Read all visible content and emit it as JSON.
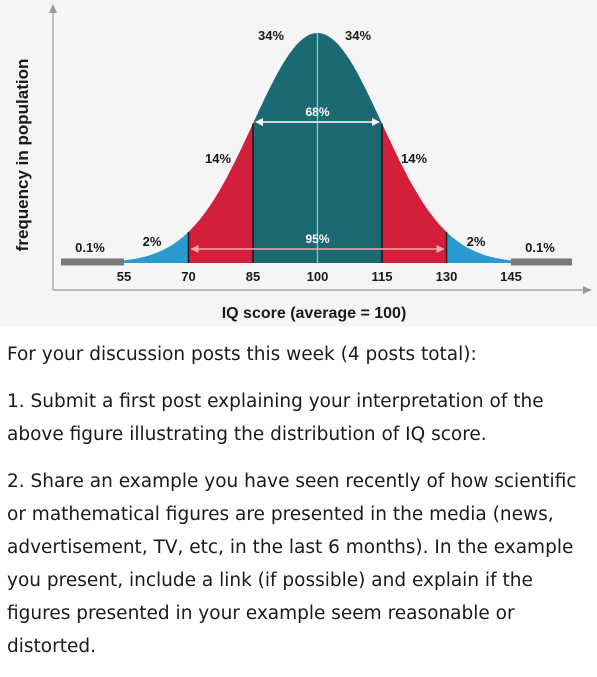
{
  "chart_data": {
    "type": "area",
    "ylabel": "frequency in population",
    "xlabel": "IQ score (average = 100)",
    "xlim": [
      40,
      160
    ],
    "x_ticks": [
      "55",
      "70",
      "85",
      "100",
      "115",
      "130",
      "145"
    ],
    "mean": 100,
    "sd": 15,
    "regions": [
      {
        "from": 40,
        "to": 55,
        "percent_label": "0.1%",
        "color": "#7a7a7a"
      },
      {
        "from": 55,
        "to": 70,
        "percent_label": "2%",
        "color": "#2a9bd1"
      },
      {
        "from": 70,
        "to": 85,
        "percent_label": "14%",
        "color": "#d41f3a"
      },
      {
        "from": 85,
        "to": 100,
        "percent_label": "34%",
        "color": "#1b6a73"
      },
      {
        "from": 100,
        "to": 115,
        "percent_label": "34%",
        "color": "#1b6a73"
      },
      {
        "from": 115,
        "to": 130,
        "percent_label": "14%",
        "color": "#d41f3a"
      },
      {
        "from": 130,
        "to": 145,
        "percent_label": "2%",
        "color": "#2a9bd1"
      },
      {
        "from": 145,
        "to": 160,
        "percent_label": "0.1%",
        "color": "#7a7a7a"
      }
    ],
    "ranges": [
      {
        "from": 85,
        "to": 115,
        "label": "68%"
      },
      {
        "from": 70,
        "to": 130,
        "label": "95%"
      }
    ],
    "grid": false
  },
  "text": {
    "intro": "For your discussion posts this week (4 posts total):",
    "item1": "1. Submit a first post explaining your interpretation of the above figure illustrating the distribution of IQ score.",
    "item2": "2. Share an example you have seen recently of how scientific or mathematical figures are presented in the media (news, advertisement, TV, etc, in the last 6 months). In the example you present, include a link (if possible) and explain if the figures presented in your example seem reasonable or distorted."
  }
}
